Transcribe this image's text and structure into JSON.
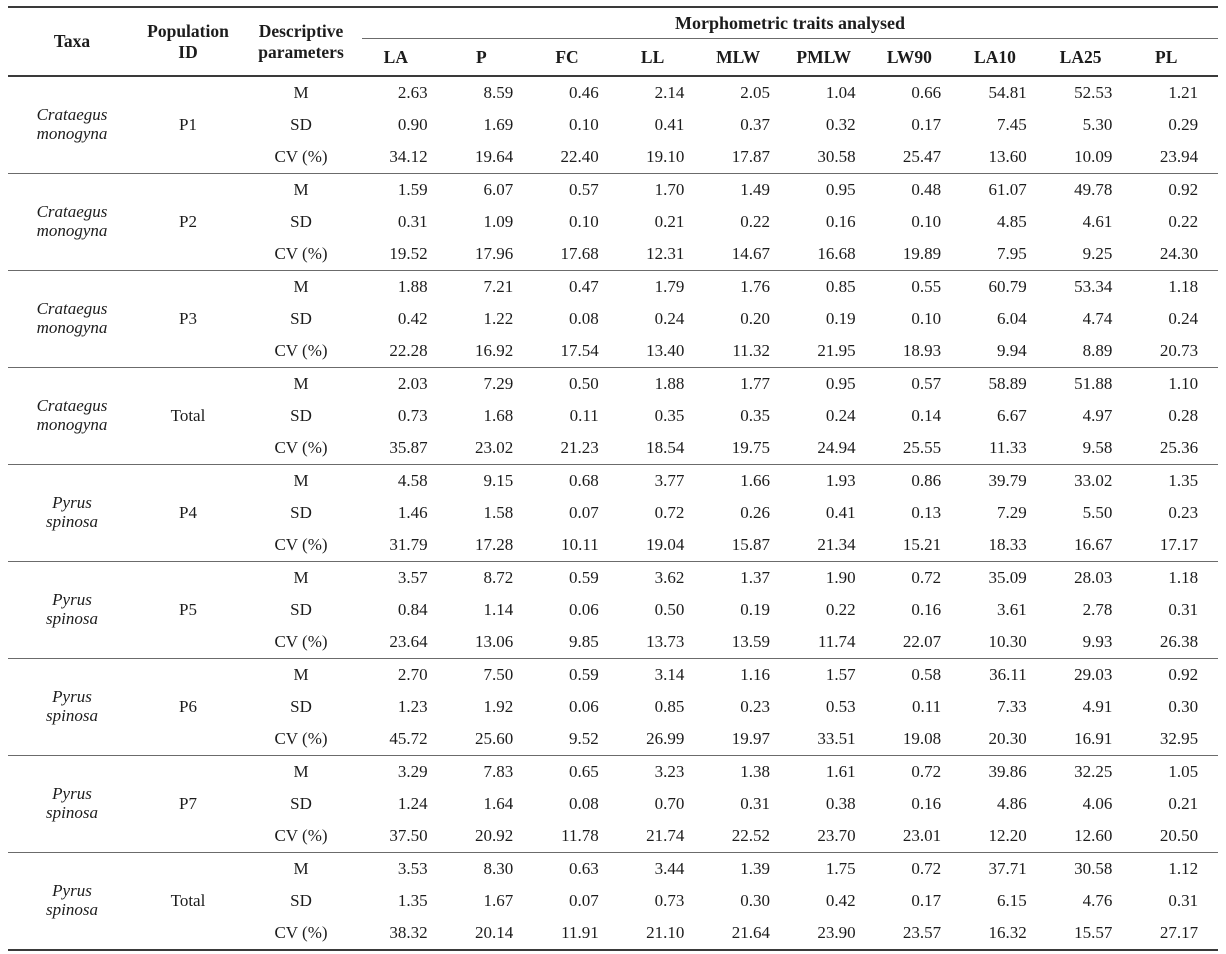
{
  "table": {
    "headers": {
      "taxa": "Taxa",
      "population_id": "Population ID",
      "descriptive_parameters": "Descriptive parameters",
      "traits_group": "Morphometric traits analysed",
      "traits": [
        "LA",
        "P",
        "FC",
        "LL",
        "MLW",
        "PMLW",
        "LW90",
        "LA10",
        "LA25",
        "PL"
      ]
    },
    "groups": [
      {
        "taxa": [
          "Crataegus",
          "monogyna"
        ],
        "population_id": "P1",
        "rows": [
          {
            "label": "M",
            "values": [
              "2.63",
              "8.59",
              "0.46",
              "2.14",
              "2.05",
              "1.04",
              "0.66",
              "54.81",
              "52.53",
              "1.21"
            ]
          },
          {
            "label": "SD",
            "values": [
              "0.90",
              "1.69",
              "0.10",
              "0.41",
              "0.37",
              "0.32",
              "0.17",
              "7.45",
              "5.30",
              "0.29"
            ]
          },
          {
            "label": "CV (%)",
            "values": [
              "34.12",
              "19.64",
              "22.40",
              "19.10",
              "17.87",
              "30.58",
              "25.47",
              "13.60",
              "10.09",
              "23.94"
            ]
          }
        ]
      },
      {
        "taxa": [
          "Crataegus",
          "monogyna"
        ],
        "population_id": "P2",
        "rows": [
          {
            "label": "M",
            "values": [
              "1.59",
              "6.07",
              "0.57",
              "1.70",
              "1.49",
              "0.95",
              "0.48",
              "61.07",
              "49.78",
              "0.92"
            ]
          },
          {
            "label": "SD",
            "values": [
              "0.31",
              "1.09",
              "0.10",
              "0.21",
              "0.22",
              "0.16",
              "0.10",
              "4.85",
              "4.61",
              "0.22"
            ]
          },
          {
            "label": "CV (%)",
            "values": [
              "19.52",
              "17.96",
              "17.68",
              "12.31",
              "14.67",
              "16.68",
              "19.89",
              "7.95",
              "9.25",
              "24.30"
            ]
          }
        ]
      },
      {
        "taxa": [
          "Crataegus",
          "monogyna"
        ],
        "population_id": "P3",
        "rows": [
          {
            "label": "M",
            "values": [
              "1.88",
              "7.21",
              "0.47",
              "1.79",
              "1.76",
              "0.85",
              "0.55",
              "60.79",
              "53.34",
              "1.18"
            ]
          },
          {
            "label": "SD",
            "values": [
              "0.42",
              "1.22",
              "0.08",
              "0.24",
              "0.20",
              "0.19",
              "0.10",
              "6.04",
              "4.74",
              "0.24"
            ]
          },
          {
            "label": "CV (%)",
            "values": [
              "22.28",
              "16.92",
              "17.54",
              "13.40",
              "11.32",
              "21.95",
              "18.93",
              "9.94",
              "8.89",
              "20.73"
            ]
          }
        ]
      },
      {
        "taxa": [
          "Crataegus",
          "monogyna"
        ],
        "population_id": "Total",
        "rows": [
          {
            "label": "M",
            "values": [
              "2.03",
              "7.29",
              "0.50",
              "1.88",
              "1.77",
              "0.95",
              "0.57",
              "58.89",
              "51.88",
              "1.10"
            ]
          },
          {
            "label": "SD",
            "values": [
              "0.73",
              "1.68",
              "0.11",
              "0.35",
              "0.35",
              "0.24",
              "0.14",
              "6.67",
              "4.97",
              "0.28"
            ]
          },
          {
            "label": "CV (%)",
            "values": [
              "35.87",
              "23.02",
              "21.23",
              "18.54",
              "19.75",
              "24.94",
              "25.55",
              "11.33",
              "9.58",
              "25.36"
            ]
          }
        ]
      },
      {
        "taxa": [
          "Pyrus",
          "spinosa"
        ],
        "population_id": "P4",
        "rows": [
          {
            "label": "M",
            "values": [
              "4.58",
              "9.15",
              "0.68",
              "3.77",
              "1.66",
              "1.93",
              "0.86",
              "39.79",
              "33.02",
              "1.35"
            ]
          },
          {
            "label": "SD",
            "values": [
              "1.46",
              "1.58",
              "0.07",
              "0.72",
              "0.26",
              "0.41",
              "0.13",
              "7.29",
              "5.50",
              "0.23"
            ]
          },
          {
            "label": "CV (%)",
            "values": [
              "31.79",
              "17.28",
              "10.11",
              "19.04",
              "15.87",
              "21.34",
              "15.21",
              "18.33",
              "16.67",
              "17.17"
            ]
          }
        ]
      },
      {
        "taxa": [
          "Pyrus",
          "spinosa"
        ],
        "population_id": "P5",
        "rows": [
          {
            "label": "M",
            "values": [
              "3.57",
              "8.72",
              "0.59",
              "3.62",
              "1.37",
              "1.90",
              "0.72",
              "35.09",
              "28.03",
              "1.18"
            ]
          },
          {
            "label": "SD",
            "values": [
              "0.84",
              "1.14",
              "0.06",
              "0.50",
              "0.19",
              "0.22",
              "0.16",
              "3.61",
              "2.78",
              "0.31"
            ]
          },
          {
            "label": "CV (%)",
            "values": [
              "23.64",
              "13.06",
              "9.85",
              "13.73",
              "13.59",
              "11.74",
              "22.07",
              "10.30",
              "9.93",
              "26.38"
            ]
          }
        ]
      },
      {
        "taxa": [
          "Pyrus",
          "spinosa"
        ],
        "population_id": "P6",
        "rows": [
          {
            "label": "M",
            "values": [
              "2.70",
              "7.50",
              "0.59",
              "3.14",
              "1.16",
              "1.57",
              "0.58",
              "36.11",
              "29.03",
              "0.92"
            ]
          },
          {
            "label": "SD",
            "values": [
              "1.23",
              "1.92",
              "0.06",
              "0.85",
              "0.23",
              "0.53",
              "0.11",
              "7.33",
              "4.91",
              "0.30"
            ]
          },
          {
            "label": "CV (%)",
            "values": [
              "45.72",
              "25.60",
              "9.52",
              "26.99",
              "19.97",
              "33.51",
              "19.08",
              "20.30",
              "16.91",
              "32.95"
            ]
          }
        ]
      },
      {
        "taxa": [
          "Pyrus",
          "spinosa"
        ],
        "population_id": "P7",
        "rows": [
          {
            "label": "M",
            "values": [
              "3.29",
              "7.83",
              "0.65",
              "3.23",
              "1.38",
              "1.61",
              "0.72",
              "39.86",
              "32.25",
              "1.05"
            ]
          },
          {
            "label": "SD",
            "values": [
              "1.24",
              "1.64",
              "0.08",
              "0.70",
              "0.31",
              "0.38",
              "0.16",
              "4.86",
              "4.06",
              "0.21"
            ]
          },
          {
            "label": "CV (%)",
            "values": [
              "37.50",
              "20.92",
              "11.78",
              "21.74",
              "22.52",
              "23.70",
              "23.01",
              "12.20",
              "12.60",
              "20.50"
            ]
          }
        ]
      },
      {
        "taxa": [
          "Pyrus",
          "spinosa"
        ],
        "population_id": "Total",
        "rows": [
          {
            "label": "M",
            "values": [
              "3.53",
              "8.30",
              "0.63",
              "3.44",
              "1.39",
              "1.75",
              "0.72",
              "37.71",
              "30.58",
              "1.12"
            ]
          },
          {
            "label": "SD",
            "values": [
              "1.35",
              "1.67",
              "0.07",
              "0.73",
              "0.30",
              "0.42",
              "0.17",
              "6.15",
              "4.76",
              "0.31"
            ]
          },
          {
            "label": "CV (%)",
            "values": [
              "38.32",
              "20.14",
              "11.91",
              "21.10",
              "21.64",
              "23.90",
              "23.57",
              "16.32",
              "15.57",
              "27.17"
            ]
          }
        ]
      }
    ]
  }
}
